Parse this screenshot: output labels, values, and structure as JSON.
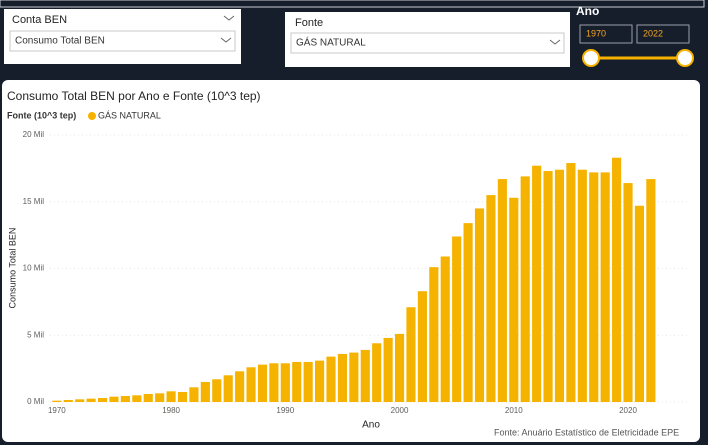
{
  "slicers": {
    "conta": {
      "title": "Conta BEN",
      "value": "Consumo Total BEN"
    },
    "fonte": {
      "title": "Fonte",
      "value": "GÁS NATURAL"
    },
    "ano": {
      "title": "Ano",
      "from": "1970",
      "to": "2022"
    }
  },
  "footer": "Fonte: Anuário Estatístico de Eletricidade EPE",
  "chart_data": {
    "type": "bar",
    "title": "Consumo Total BEN por Ano e Fonte (10^3 tep)",
    "legend_title": "Fonte (10^3 tep)",
    "x_label": "Ano",
    "y_label": "Consumo Total BEN",
    "x": [
      1970,
      1971,
      1972,
      1973,
      1974,
      1975,
      1976,
      1977,
      1978,
      1979,
      1980,
      1981,
      1982,
      1983,
      1984,
      1985,
      1986,
      1987,
      1988,
      1989,
      1990,
      1991,
      1992,
      1993,
      1994,
      1995,
      1996,
      1997,
      1998,
      1999,
      2000,
      2001,
      2002,
      2003,
      2004,
      2005,
      2006,
      2007,
      2008,
      2009,
      2010,
      2011,
      2012,
      2013,
      2014,
      2015,
      2016,
      2017,
      2018,
      2019,
      2020,
      2021,
      2022
    ],
    "series": [
      {
        "name": "GÁS NATURAL",
        "color": "#f5b300",
        "values": [
          100,
          150,
          200,
          250,
          300,
          400,
          450,
          500,
          600,
          650,
          800,
          750,
          1100,
          1500,
          1700,
          2000,
          2300,
          2600,
          2800,
          2900,
          2900,
          3000,
          3000,
          3100,
          3400,
          3600,
          3700,
          3900,
          4400,
          4800,
          5100,
          7100,
          8300,
          10100,
          10900,
          12400,
          13400,
          14500,
          15500,
          16700,
          15300,
          16900,
          17700,
          17300,
          17400,
          17900,
          17400,
          17200,
          17200,
          18300,
          16400,
          14700,
          16700
        ]
      }
    ],
    "xlim": [
      1969.4,
      2022.8
    ],
    "xticks": [
      1970,
      1980,
      1990,
      2000,
      2010,
      2020
    ],
    "ylim": [
      0,
      20000
    ],
    "yticks": [
      {
        "value": 0,
        "label": "0 Mil"
      },
      {
        "value": 5000,
        "label": "5 Mil"
      },
      {
        "value": 10000,
        "label": "10 Mil"
      },
      {
        "value": 15000,
        "label": "15 Mil"
      },
      {
        "value": 20000,
        "label": "20 Mil"
      }
    ],
    "grid": true
  }
}
